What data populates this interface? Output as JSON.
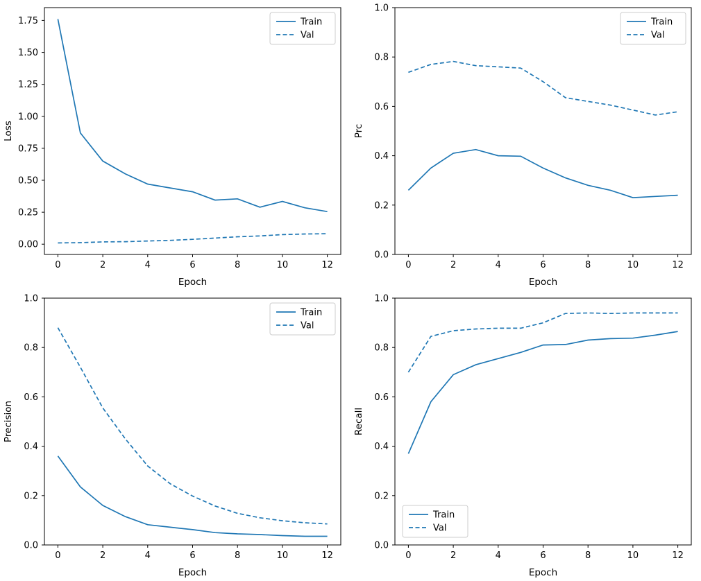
{
  "figure": {
    "background": "#ffffff",
    "accent_color": "#1f77b4",
    "text_color": "#000000",
    "legend_border_color": "#cccccc"
  },
  "chart_data": [
    {
      "type": "line",
      "title": "",
      "xlabel": "Epoch",
      "ylabel": "Loss",
      "grid": false,
      "legend_position": "upper-right",
      "x": [
        0,
        1,
        2,
        3,
        4,
        5,
        6,
        7,
        8,
        9,
        10,
        11,
        12
      ],
      "xlim": [
        -0.6,
        12.6
      ],
      "ylim": [
        -0.08,
        1.85
      ],
      "xticks": [
        0,
        2,
        4,
        6,
        8,
        10,
        12
      ],
      "yticks": [
        0,
        0.25,
        0.5,
        0.75,
        1,
        1.25,
        1.5,
        1.75
      ],
      "ytick_decimals": 2,
      "series": [
        {
          "name": "Train",
          "style": "solid",
          "values": [
            1.76,
            0.87,
            0.65,
            0.55,
            0.47,
            0.44,
            0.41,
            0.345,
            0.355,
            0.29,
            0.335,
            0.285,
            0.255
          ]
        },
        {
          "name": "Val",
          "style": "dashed",
          "values": [
            0.01,
            0.012,
            0.018,
            0.02,
            0.025,
            0.03,
            0.038,
            0.048,
            0.058,
            0.065,
            0.075,
            0.08,
            0.082
          ]
        }
      ]
    },
    {
      "type": "line",
      "title": "",
      "xlabel": "Epoch",
      "ylabel": "Prc",
      "grid": false,
      "legend_position": "upper-right",
      "x": [
        0,
        1,
        2,
        3,
        4,
        5,
        6,
        7,
        8,
        9,
        10,
        11,
        12
      ],
      "xlim": [
        -0.6,
        12.6
      ],
      "ylim": [
        0,
        1
      ],
      "xticks": [
        0,
        2,
        4,
        6,
        8,
        10,
        12
      ],
      "yticks": [
        0,
        0.2,
        0.4,
        0.6,
        0.8,
        1
      ],
      "ytick_decimals": 1,
      "series": [
        {
          "name": "Train",
          "style": "solid",
          "values": [
            0.26,
            0.35,
            0.41,
            0.425,
            0.4,
            0.398,
            0.35,
            0.31,
            0.28,
            0.26,
            0.23,
            0.235,
            0.24
          ]
        },
        {
          "name": "Val",
          "style": "dashed",
          "values": [
            0.738,
            0.77,
            0.782,
            0.765,
            0.76,
            0.755,
            0.7,
            0.635,
            0.62,
            0.605,
            0.585,
            0.565,
            0.578
          ]
        }
      ]
    },
    {
      "type": "line",
      "title": "",
      "xlabel": "Epoch",
      "ylabel": "Precision",
      "grid": false,
      "legend_position": "upper-right",
      "x": [
        0,
        1,
        2,
        3,
        4,
        5,
        6,
        7,
        8,
        9,
        10,
        11,
        12
      ],
      "xlim": [
        -0.6,
        12.6
      ],
      "ylim": [
        0,
        1
      ],
      "xticks": [
        0,
        2,
        4,
        6,
        8,
        10,
        12
      ],
      "yticks": [
        0,
        0.2,
        0.4,
        0.6,
        0.8,
        1
      ],
      "ytick_decimals": 1,
      "series": [
        {
          "name": "Train",
          "style": "solid",
          "values": [
            0.36,
            0.235,
            0.16,
            0.115,
            0.082,
            0.072,
            0.062,
            0.05,
            0.045,
            0.042,
            0.038,
            0.035,
            0.035
          ]
        },
        {
          "name": "Val",
          "style": "dashed",
          "values": [
            0.88,
            0.72,
            0.555,
            0.43,
            0.32,
            0.248,
            0.198,
            0.158,
            0.128,
            0.11,
            0.098,
            0.09,
            0.085
          ]
        }
      ]
    },
    {
      "type": "line",
      "title": "",
      "xlabel": "Epoch",
      "ylabel": "Recall",
      "grid": false,
      "legend_position": "lower-left",
      "x": [
        0,
        1,
        2,
        3,
        4,
        5,
        6,
        7,
        8,
        9,
        10,
        11,
        12
      ],
      "xlim": [
        -0.6,
        12.6
      ],
      "ylim": [
        0,
        1
      ],
      "xticks": [
        0,
        2,
        4,
        6,
        8,
        10,
        12
      ],
      "yticks": [
        0,
        0.2,
        0.4,
        0.6,
        0.8,
        1
      ],
      "ytick_decimals": 1,
      "series": [
        {
          "name": "Train",
          "style": "solid",
          "values": [
            0.37,
            0.58,
            0.69,
            0.73,
            0.755,
            0.78,
            0.81,
            0.812,
            0.83,
            0.836,
            0.838,
            0.85,
            0.865
          ]
        },
        {
          "name": "Val",
          "style": "dashed",
          "values": [
            0.7,
            0.845,
            0.868,
            0.875,
            0.878,
            0.878,
            0.9,
            0.938,
            0.94,
            0.938,
            0.94,
            0.94,
            0.94
          ]
        }
      ]
    }
  ]
}
